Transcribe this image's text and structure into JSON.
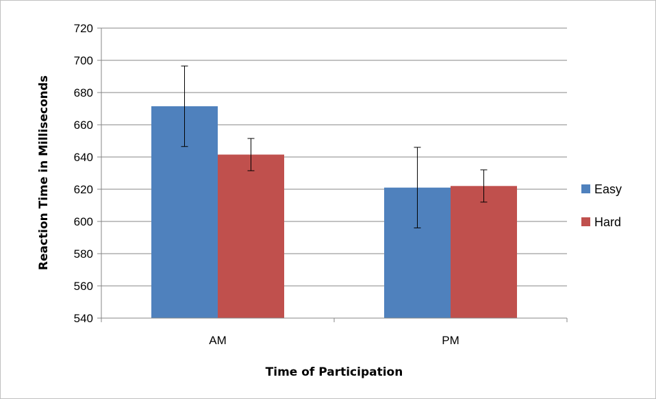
{
  "chart_data": {
    "type": "bar",
    "title": "",
    "xlabel": "Time of Participation",
    "ylabel": "Reaction Time in Milliseconds",
    "categories": [
      "AM",
      "PM"
    ],
    "series": [
      {
        "name": "Easy",
        "color": "#4F81BD",
        "values": [
          671.5,
          621
        ],
        "error": [
          25,
          25
        ]
      },
      {
        "name": "Hard",
        "color": "#C0504D",
        "values": [
          641.5,
          622
        ],
        "error": [
          10,
          10
        ]
      }
    ],
    "ylim": [
      540,
      720
    ],
    "yticks": [
      540,
      560,
      580,
      600,
      620,
      640,
      660,
      680,
      700,
      720
    ],
    "grid": true,
    "legend": "right"
  }
}
